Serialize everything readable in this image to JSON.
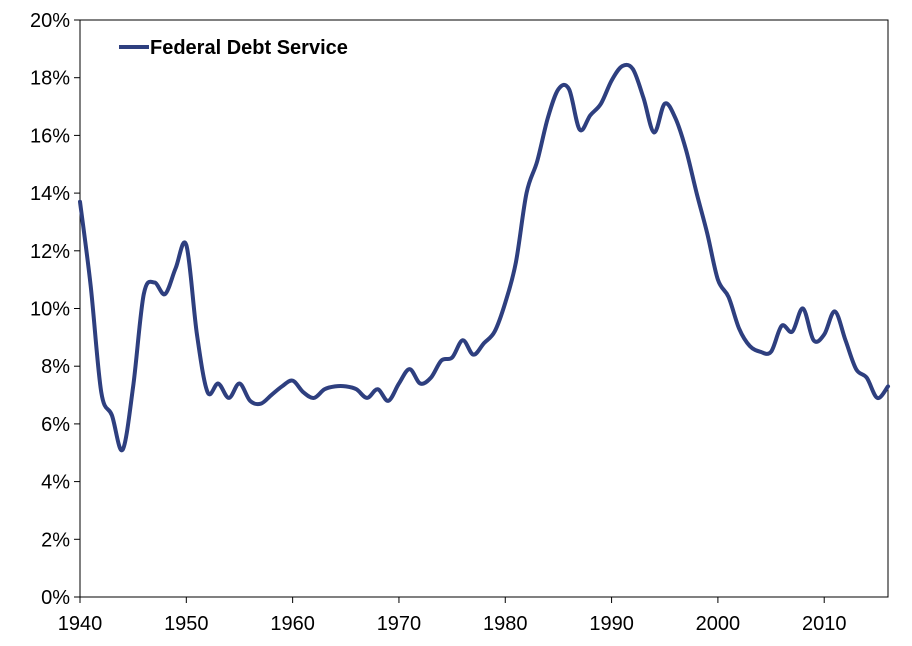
{
  "chart_data": {
    "type": "line",
    "title": "",
    "xlabel": "",
    "ylabel": "",
    "xlim": [
      1940,
      2016
    ],
    "ylim": [
      0,
      20
    ],
    "grid": false,
    "legend_position": "top-left",
    "x_ticks": [
      1940,
      1950,
      1960,
      1970,
      1980,
      1990,
      2000,
      2010
    ],
    "x_tick_labels": [
      "1940",
      "1950",
      "1960",
      "1970",
      "1980",
      "1990",
      "2000",
      "2010"
    ],
    "y_ticks": [
      0,
      2,
      4,
      6,
      8,
      10,
      12,
      14,
      16,
      18,
      20
    ],
    "y_tick_labels": [
      "0%",
      "2%",
      "4%",
      "6%",
      "8%",
      "10%",
      "12%",
      "14%",
      "16%",
      "18%",
      "20%"
    ],
    "series": [
      {
        "name": "Federal Debt Service",
        "color": "#2e3f7f",
        "x": [
          1940,
          1941,
          1942,
          1943,
          1944,
          1945,
          1946,
          1947,
          1948,
          1949,
          1950,
          1951,
          1952,
          1953,
          1954,
          1955,
          1956,
          1957,
          1958,
          1959,
          1960,
          1961,
          1962,
          1963,
          1964,
          1965,
          1966,
          1967,
          1968,
          1969,
          1970,
          1971,
          1972,
          1973,
          1974,
          1975,
          1976,
          1977,
          1978,
          1979,
          1980,
          1981,
          1982,
          1983,
          1984,
          1985,
          1986,
          1987,
          1988,
          1989,
          1990,
          1991,
          1992,
          1993,
          1994,
          1995,
          1996,
          1997,
          1998,
          1999,
          2000,
          2001,
          2002,
          2003,
          2004,
          2005,
          2006,
          2007,
          2008,
          2009,
          2010,
          2011,
          2012,
          2013,
          2014,
          2015,
          2016
        ],
        "y": [
          13.7,
          10.8,
          7.1,
          6.3,
          5.1,
          7.3,
          10.5,
          10.9,
          10.5,
          11.4,
          12.2,
          9.1,
          7.1,
          7.4,
          6.9,
          7.4,
          6.8,
          6.7,
          7.0,
          7.3,
          7.5,
          7.1,
          6.9,
          7.2,
          7.3,
          7.3,
          7.2,
          6.9,
          7.2,
          6.8,
          7.4,
          7.9,
          7.4,
          7.6,
          8.2,
          8.3,
          8.9,
          8.4,
          8.8,
          9.2,
          10.2,
          11.6,
          14.0,
          15.1,
          16.6,
          17.6,
          17.6,
          16.2,
          16.7,
          17.1,
          17.9,
          18.4,
          18.3,
          17.3,
          16.1,
          17.1,
          16.6,
          15.5,
          14.0,
          12.6,
          11.0,
          10.4,
          9.3,
          8.7,
          8.5,
          8.5,
          9.4,
          9.2,
          10.0,
          8.9,
          9.1,
          9.9,
          8.9,
          7.9,
          7.6,
          6.9,
          7.3
        ]
      }
    ]
  }
}
